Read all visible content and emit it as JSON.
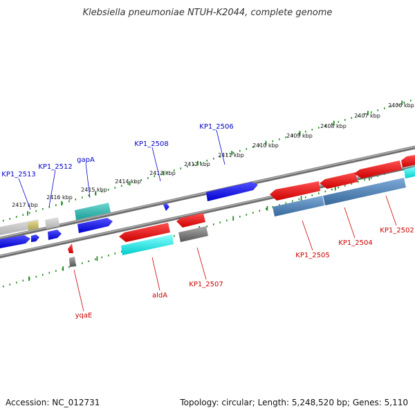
{
  "header": {
    "title": "Klebsiella pneumoniae NTUH-K2044, complete genome"
  },
  "footer": {
    "accession": "Accession: NC_012731",
    "summary": "Topology: circular; Length: 5,248,520 bp; Genes: 5,110"
  },
  "ruler": {
    "ticks": [
      {
        "label": "2406 kbp"
      },
      {
        "label": "2407 kbp"
      },
      {
        "label": "2408 kbp"
      },
      {
        "label": "2409 kbp"
      },
      {
        "label": "2410 kbp"
      },
      {
        "label": "2411 kbp"
      },
      {
        "label": "2412 kbp"
      },
      {
        "label": "2413 kbp"
      },
      {
        "label": "2414 kbp"
      },
      {
        "label": "2415 kbp"
      },
      {
        "label": "2416 kbp"
      },
      {
        "label": "2417 kbp"
      }
    ]
  },
  "genes_top": [
    {
      "label": "KP1_2513",
      "color": "#0000cc"
    },
    {
      "label": "KP1_2512",
      "color": "#0000cc"
    },
    {
      "label": "gapA",
      "color": "#0000cc"
    },
    {
      "label": "KP1_2508",
      "color": "#0000cc"
    },
    {
      "label": "KP1_2506",
      "color": "#0000cc"
    }
  ],
  "genes_bottom": [
    {
      "label": "yqaE",
      "color": "#cc0000"
    },
    {
      "label": "aldA",
      "color": "#cc0000"
    },
    {
      "label": "KP1_2507",
      "color": "#cc0000"
    },
    {
      "label": "KP1_2505",
      "color": "#cc0000"
    },
    {
      "label": "KP1_2504",
      "color": "#cc0000"
    },
    {
      "label": "KP1_2502",
      "color": "#cc0000"
    }
  ],
  "colors": {
    "forward_cds": "#0000ee",
    "reverse_cds": "#ee0000",
    "feature_cyan": "#00e5e5",
    "feature_teal": "#20b2aa",
    "feature_steel": "#4682b4",
    "feature_gray": "#777777",
    "backbone": "#8a8a8a",
    "ruler_ticks": "#228b22"
  }
}
